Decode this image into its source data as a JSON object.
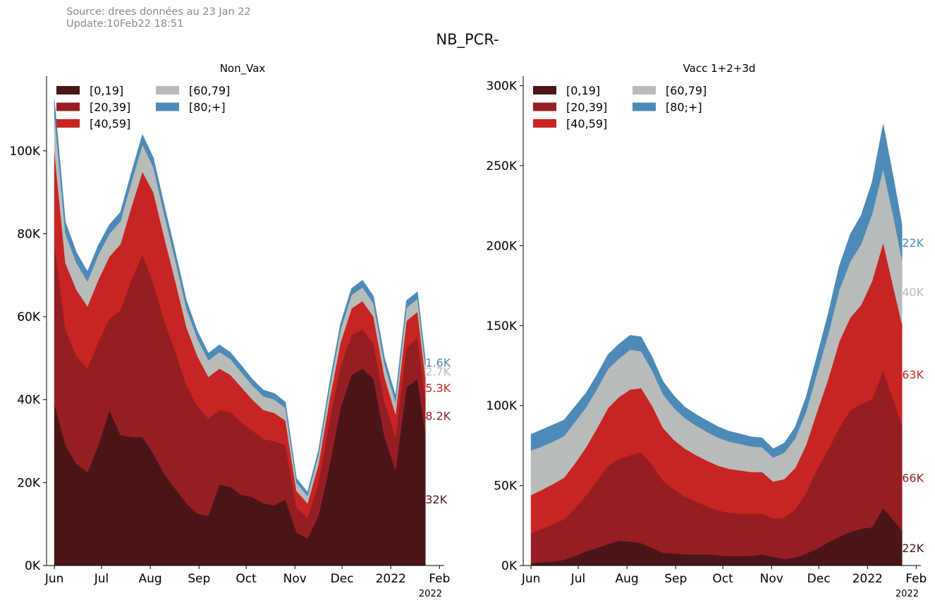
{
  "header": {
    "source_line1": "Source: drees données au 23 Jan 22",
    "source_line2": "Update:10Feb22 18:51",
    "suptitle": "NB_PCR-"
  },
  "legend_colors": {
    "[0,19]": "#4b1518",
    "[20,39]": "#951e22",
    "[40,59]": "#c62523",
    "[60,79]": "#b8bcb9",
    "[80;+]": "#4d8ab8"
  },
  "chart_data": [
    {
      "type": "area",
      "stacked": true,
      "title": "Non_Vax",
      "x_ticks": [
        "Jun",
        "Jul",
        "Aug",
        "Sep",
        "Oct",
        "Nov",
        "Dec",
        "2022",
        "Feb"
      ],
      "x_year_label": "2022",
      "x_range": [
        "2021-05-27",
        "2022-02-04"
      ],
      "y_ticks": [
        "0K",
        "20K",
        "40K",
        "60K",
        "80K",
        "100K"
      ],
      "ylim": [
        0,
        118000
      ],
      "legend": [
        "[0,19]",
        "[20,39]",
        "[40,59]",
        "[60,79]",
        "[80;+]"
      ],
      "legend_position": "top-left",
      "grid": false,
      "x": [
        "2021-06-01",
        "2021-06-08",
        "2021-06-15",
        "2021-06-22",
        "2021-06-29",
        "2021-07-06",
        "2021-07-13",
        "2021-07-20",
        "2021-07-27",
        "2021-08-03",
        "2021-08-10",
        "2021-08-17",
        "2021-08-24",
        "2021-08-31",
        "2021-09-07",
        "2021-09-14",
        "2021-09-21",
        "2021-09-28",
        "2021-10-05",
        "2021-10-12",
        "2021-10-19",
        "2021-10-26",
        "2021-11-02",
        "2021-11-09",
        "2021-11-16",
        "2021-11-23",
        "2021-11-30",
        "2021-12-07",
        "2021-12-14",
        "2021-12-21",
        "2021-12-28",
        "2022-01-04",
        "2022-01-11",
        "2022-01-18",
        "2022-01-23"
      ],
      "series": [
        {
          "name": "[0,19]",
          "values": [
            39000,
            29000,
            24500,
            22500,
            29000,
            37500,
            31500,
            31000,
            31000,
            27000,
            22000,
            18500,
            15000,
            12500,
            12000,
            19500,
            19000,
            17000,
            16500,
            15000,
            14500,
            16000,
            8000,
            6500,
            12000,
            24000,
            38000,
            46000,
            47500,
            45000,
            31000,
            23000,
            43000,
            45000,
            32000
          ]
        },
        {
          "name": "[20,39]",
          "values": [
            39000,
            28000,
            26000,
            25000,
            25000,
            22000,
            30000,
            38000,
            44000,
            41000,
            37000,
            33000,
            28500,
            26000,
            23500,
            18000,
            18000,
            17500,
            16000,
            15500,
            15500,
            13000,
            6000,
            5000,
            8000,
            11000,
            10000,
            9500,
            9500,
            8500,
            8500,
            8000,
            9500,
            10000,
            8200
          ]
        },
        {
          "name": "[40,59]",
          "values": [
            22000,
            16000,
            16000,
            15000,
            15000,
            15000,
            16000,
            17500,
            20000,
            22000,
            20000,
            17000,
            14000,
            12000,
            10000,
            10000,
            9000,
            8500,
            7500,
            7000,
            6800,
            6000,
            4000,
            3500,
            4500,
            5000,
            5800,
            6500,
            6800,
            6500,
            6000,
            5500,
            6500,
            6200,
            5300
          ]
        },
        {
          "name": "[60,79]",
          "values": [
            9000,
            7000,
            6500,
            6000,
            6000,
            5500,
            5500,
            6000,
            6500,
            6000,
            5500,
            5000,
            4500,
            4200,
            4000,
            4000,
            3800,
            3600,
            3400,
            3300,
            3200,
            3000,
            2000,
            1800,
            2200,
            2600,
            3000,
            3200,
            3300,
            3200,
            3000,
            2900,
            3200,
            3100,
            2700
          ]
        },
        {
          "name": "[80;+]",
          "values": [
            3500,
            2800,
            2500,
            2400,
            2300,
            2200,
            2200,
            2300,
            2400,
            2300,
            2200,
            2000,
            1900,
            1800,
            1700,
            1700,
            1600,
            1600,
            1500,
            1500,
            1500,
            1400,
            1000,
            900,
            1100,
            1300,
            1500,
            1600,
            1700,
            1700,
            1600,
            1500,
            1700,
            1700,
            1600
          ]
        }
      ],
      "end_labels": [
        "32K",
        "8.2K",
        "5.3K",
        "2.7K",
        "1.6K"
      ]
    },
    {
      "type": "area",
      "stacked": true,
      "title": "Vacc 1+2+3d",
      "x_ticks": [
        "Jun",
        "Jul",
        "Aug",
        "Sep",
        "Oct",
        "Nov",
        "Dec",
        "2022",
        "Feb"
      ],
      "x_year_label": "2022",
      "x_range": [
        "2021-05-27",
        "2022-02-04"
      ],
      "y_ticks": [
        "0K",
        "50K",
        "100K",
        "150K",
        "200K",
        "250K",
        "300K"
      ],
      "ylim": [
        0,
        306000
      ],
      "legend": [
        "[0,19]",
        "[20,39]",
        "[40,59]",
        "[60,79]",
        "[80;+]"
      ],
      "legend_position": "top-left",
      "grid": false,
      "x": [
        "2021-06-01",
        "2021-06-08",
        "2021-06-15",
        "2021-06-22",
        "2021-06-29",
        "2021-07-06",
        "2021-07-13",
        "2021-07-20",
        "2021-07-27",
        "2021-08-03",
        "2021-08-10",
        "2021-08-17",
        "2021-08-24",
        "2021-08-31",
        "2021-09-07",
        "2021-09-14",
        "2021-09-21",
        "2021-09-28",
        "2021-10-05",
        "2021-10-12",
        "2021-10-19",
        "2021-10-26",
        "2021-11-02",
        "2021-11-09",
        "2021-11-16",
        "2021-11-23",
        "2021-11-30",
        "2021-12-07",
        "2021-12-14",
        "2021-12-21",
        "2021-12-28",
        "2022-01-04",
        "2022-01-11",
        "2022-01-18",
        "2022-01-23"
      ],
      "series": [
        {
          "name": "[0,19]",
          "values": [
            1500,
            2000,
            2500,
            3500,
            6000,
            9000,
            11000,
            13500,
            15500,
            15000,
            14000,
            11000,
            8000,
            7500,
            7000,
            7000,
            7000,
            6500,
            6000,
            6000,
            6000,
            7000,
            5500,
            4000,
            5000,
            7500,
            10500,
            14500,
            18000,
            21000,
            23000,
            24000,
            36000,
            28000,
            22000
          ]
        },
        {
          "name": "[20,39]",
          "values": [
            18500,
            21000,
            23500,
            25500,
            30000,
            35000,
            42000,
            49000,
            51000,
            54000,
            57000,
            52000,
            45000,
            40000,
            36000,
            33000,
            30000,
            28000,
            27000,
            26500,
            26000,
            25500,
            24000,
            26000,
            30000,
            38000,
            50000,
            58000,
            68000,
            76000,
            78000,
            80000,
            86000,
            74000,
            66000
          ]
        },
        {
          "name": "[40,59]",
          "values": [
            24000,
            24500,
            25000,
            26000,
            28000,
            30000,
            33000,
            36000,
            39000,
            41000,
            40000,
            37000,
            33000,
            31000,
            30000,
            29000,
            28500,
            28000,
            27500,
            27000,
            26500,
            26000,
            23000,
            24000,
            26000,
            30000,
            36000,
            44000,
            54000,
            58000,
            62000,
            74000,
            80000,
            70000,
            63000
          ]
        },
        {
          "name": "[60,79]",
          "values": [
            28000,
            27000,
            26500,
            26000,
            26000,
            25000,
            24500,
            24500,
            24000,
            25000,
            23000,
            22000,
            21000,
            20000,
            19000,
            18500,
            18000,
            17500,
            17000,
            16500,
            16000,
            15500,
            15000,
            16500,
            18500,
            21000,
            24000,
            28000,
            32000,
            35000,
            38000,
            42000,
            46000,
            44000,
            40000
          ]
        },
        {
          "name": "[80;+]",
          "values": [
            10000,
            10500,
            10500,
            10000,
            9500,
            9000,
            9000,
            9000,
            9000,
            9000,
            9000,
            8500,
            8000,
            7500,
            7000,
            7000,
            7000,
            6800,
            6500,
            6300,
            6000,
            5800,
            5500,
            6000,
            7000,
            9000,
            11000,
            13000,
            15000,
            17000,
            18000,
            20000,
            28000,
            24000,
            22000
          ]
        }
      ],
      "end_labels": [
        "22K",
        "66K",
        "63K",
        "40K",
        "22K"
      ]
    }
  ]
}
